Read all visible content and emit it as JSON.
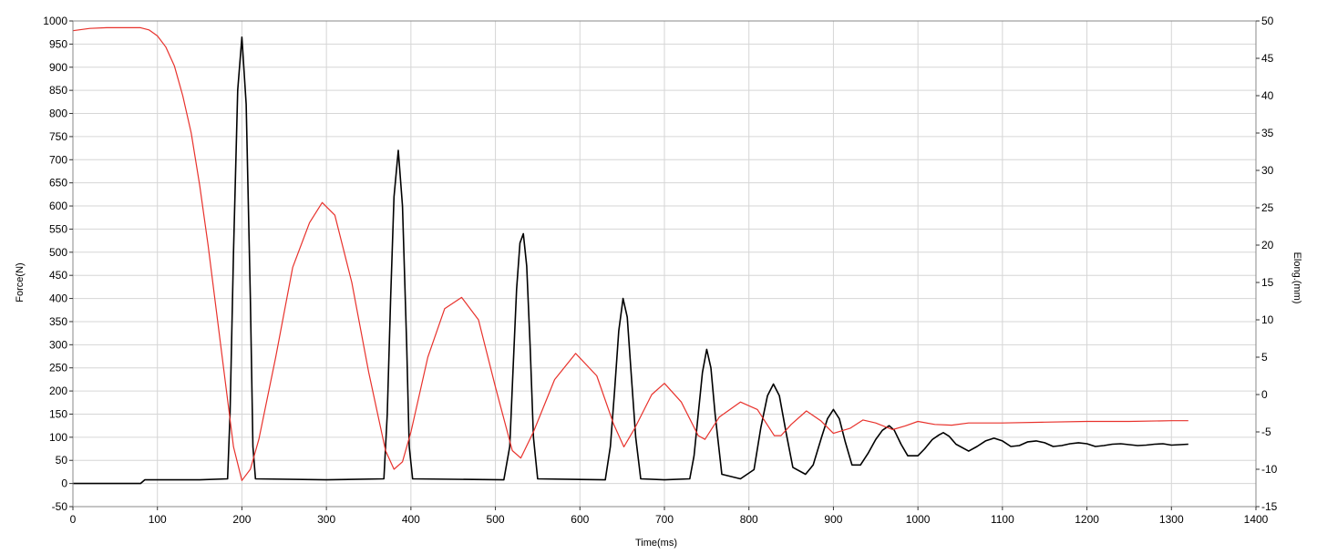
{
  "chart_data": {
    "type": "line",
    "title": "",
    "xlabel": "Time(ms)",
    "ylabel": "Force(N)",
    "y2label": "Elong.(mm)",
    "xlim": [
      0,
      1400
    ],
    "ylim": [
      -50,
      1000
    ],
    "y2lim": [
      -15,
      50
    ],
    "xticks": [
      0,
      100,
      200,
      300,
      400,
      500,
      600,
      700,
      800,
      900,
      1000,
      1100,
      1200,
      1300,
      1400
    ],
    "yticks": [
      -50,
      0,
      50,
      100,
      150,
      200,
      250,
      300,
      350,
      400,
      450,
      500,
      550,
      600,
      650,
      700,
      750,
      800,
      850,
      900,
      950,
      1000
    ],
    "y2ticks": [
      -15,
      -10,
      -5,
      0,
      5,
      10,
      15,
      20,
      25,
      30,
      35,
      40,
      45,
      50
    ],
    "grid": true,
    "legend": "none",
    "series": [
      {
        "axis": "left",
        "color": "#000000",
        "x": [
          0,
          80,
          85,
          150,
          183,
          186,
          190,
          195,
          200,
          205,
          210,
          213,
          216,
          300,
          368,
          372,
          376,
          380,
          385,
          390,
          395,
          398,
          402,
          510,
          517,
          521,
          525,
          529,
          533,
          537,
          541,
          545,
          550,
          630,
          636,
          641,
          646,
          651,
          656,
          661,
          666,
          672,
          700,
          730,
          735,
          740,
          745,
          750,
          755,
          760,
          768,
          790,
          806,
          814,
          822,
          829,
          836,
          844,
          852,
          867,
          876,
          886,
          893,
          900,
          907,
          914,
          922,
          932,
          941,
          950,
          958,
          966,
          972,
          980,
          988,
          1000,
          1008,
          1017,
          1025,
          1030,
          1037,
          1045,
          1060,
          1070,
          1080,
          1090,
          1100,
          1110,
          1120,
          1130,
          1140,
          1150,
          1160,
          1170,
          1180,
          1190,
          1200,
          1210,
          1220,
          1230,
          1240,
          1250,
          1260,
          1270,
          1280,
          1290,
          1300,
          1310,
          1320
        ],
        "y": [
          0,
          0,
          8,
          8,
          10,
          150,
          500,
          850,
          965,
          820,
          400,
          80,
          10,
          8,
          10,
          150,
          400,
          620,
          720,
          600,
          300,
          80,
          10,
          8,
          80,
          250,
          420,
          520,
          540,
          470,
          300,
          100,
          10,
          8,
          80,
          200,
          330,
          400,
          360,
          230,
          100,
          10,
          8,
          10,
          60,
          150,
          240,
          290,
          250,
          150,
          20,
          10,
          30,
          120,
          190,
          215,
          190,
          110,
          35,
          20,
          40,
          100,
          140,
          160,
          140,
          90,
          40,
          40,
          65,
          95,
          115,
          125,
          115,
          85,
          60,
          60,
          75,
          95,
          105,
          110,
          102,
          85,
          70,
          80,
          92,
          98,
          92,
          80,
          82,
          90,
          92,
          88,
          80,
          82,
          86,
          88,
          86,
          80,
          82,
          85,
          86,
          84,
          82,
          83,
          85,
          86,
          83,
          84,
          85
        ]
      },
      {
        "axis": "right",
        "color": "#e8322c",
        "x": [
          0,
          20,
          40,
          60,
          80,
          90,
          100,
          110,
          120,
          130,
          140,
          150,
          160,
          170,
          180,
          190,
          200,
          210,
          220,
          240,
          260,
          280,
          295,
          310,
          330,
          350,
          370,
          380,
          390,
          400,
          420,
          440,
          460,
          480,
          500,
          520,
          530,
          545,
          570,
          595,
          620,
          640,
          652,
          665,
          685,
          700,
          720,
          740,
          748,
          765,
          790,
          810,
          830,
          838,
          850,
          868,
          885,
          900,
          920,
          935,
          950,
          970,
          985,
          1000,
          1020,
          1040,
          1060,
          1100,
          1150,
          1200,
          1250,
          1300,
          1320
        ],
        "y": [
          48.7,
          49,
          49.1,
          49.1,
          49.1,
          48.8,
          48,
          46.5,
          44,
          40,
          35,
          28,
          20,
          11,
          2,
          -7,
          -11.5,
          -10,
          -6,
          5,
          17,
          23,
          25.7,
          24,
          15,
          3,
          -7.5,
          -10,
          -9,
          -5,
          5,
          11.5,
          13,
          10,
          1,
          -7.5,
          -8.5,
          -5,
          2,
          5.5,
          2.5,
          -4,
          -7,
          -4.5,
          0,
          1.5,
          -1,
          -5.5,
          -6,
          -3,
          -1,
          -2,
          -5.5,
          -5.5,
          -4,
          -2.2,
          -3.5,
          -5.2,
          -4.5,
          -3.4,
          -3.8,
          -4.7,
          -4.2,
          -3.6,
          -4,
          -4.1,
          -3.8,
          -3.8,
          -3.7,
          -3.6,
          -3.6,
          -3.5,
          -3.5
        ]
      }
    ]
  }
}
